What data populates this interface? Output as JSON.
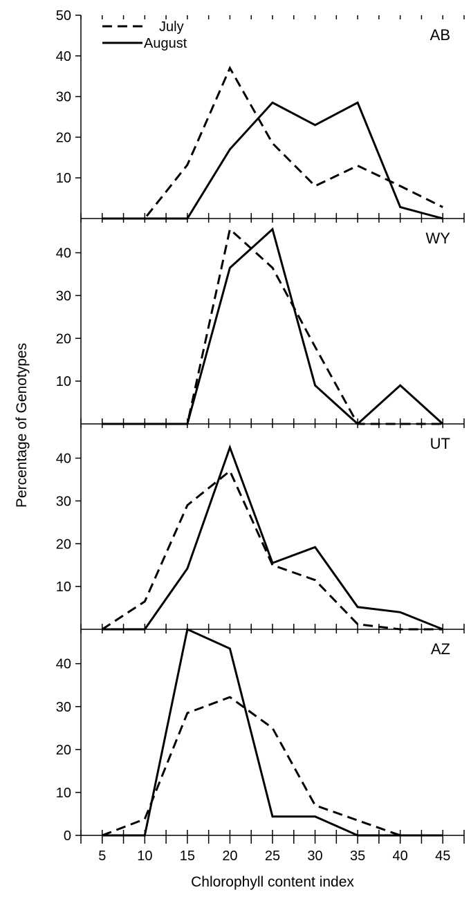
{
  "chart_data": {
    "type": "line",
    "xlabel": "Chlorophyll content index",
    "ylabel": "Percentage of Genotypes",
    "x": [
      5,
      10,
      15,
      20,
      25,
      30,
      35,
      40,
      45
    ],
    "x_tick_labels": [
      "5",
      "10",
      "15",
      "20",
      "25",
      "30",
      "35",
      "40",
      "45"
    ],
    "xlim": [
      2.5,
      47.5
    ],
    "legend": {
      "placement": "top-left",
      "entries": [
        {
          "name": "July",
          "style": "dashed"
        },
        {
          "name": "August",
          "style": "solid"
        }
      ]
    },
    "panels": [
      {
        "label": "AB",
        "ylim": [
          0,
          50
        ],
        "y_ticks": [
          "10",
          "20",
          "30",
          "40",
          "50"
        ],
        "y_tick_values": [
          10,
          20,
          30,
          40,
          50
        ],
        "series": [
          {
            "name": "July",
            "values": [
              0,
              0,
              13.2,
              37,
              18.5,
              8,
              13,
              8,
              2.8
            ]
          },
          {
            "name": "August",
            "values": [
              0,
              0,
              0,
              17,
              28.5,
              23,
              28.5,
              2.8,
              0
            ]
          }
        ]
      },
      {
        "label": "WY",
        "ylim": [
          0,
          48
        ],
        "y_ticks": [
          "10",
          "20",
          "30",
          "40"
        ],
        "y_tick_values": [
          10,
          20,
          30,
          40
        ],
        "series": [
          {
            "name": "July",
            "values": [
              0,
              0,
              0,
              45.5,
              36.5,
              18,
              0,
              0,
              0
            ]
          },
          {
            "name": "August",
            "values": [
              0,
              0,
              0,
              36.5,
              45.5,
              9,
              0,
              9,
              0
            ]
          }
        ]
      },
      {
        "label": "UT",
        "ylim": [
          0,
          48
        ],
        "y_ticks": [
          "10",
          "20",
          "30",
          "40"
        ],
        "y_tick_values": [
          10,
          20,
          30,
          40
        ],
        "series": [
          {
            "name": "July",
            "values": [
              0,
              6.5,
              29,
              37,
              15,
              11.5,
              1.2,
              0,
              0
            ]
          },
          {
            "name": "August",
            "values": [
              0,
              0,
              14.2,
              42.5,
              15.5,
              19.2,
              5.2,
              4,
              0
            ]
          }
        ]
      },
      {
        "label": "AZ",
        "ylim": [
          0,
          48
        ],
        "y_ticks": [
          "0",
          "10",
          "20",
          "30",
          "40"
        ],
        "y_tick_values": [
          0,
          10,
          20,
          30,
          40
        ],
        "series": [
          {
            "name": "July",
            "values": [
              0,
              3.8,
              28.5,
              32.2,
              25,
              7,
              3.5,
              0,
              0
            ]
          },
          {
            "name": "August",
            "values": [
              0,
              0,
              48,
              43.5,
              4.4,
              4.4,
              0,
              0,
              0
            ]
          }
        ]
      }
    ]
  }
}
